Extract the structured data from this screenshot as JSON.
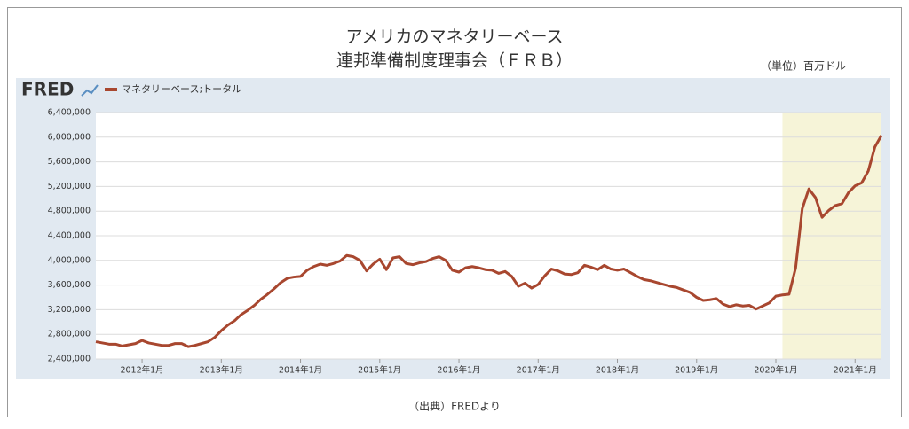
{
  "chart_data": {
    "type": "line",
    "title": "アメリカのマネタリーベース",
    "subtitle": "連邦準備制度理事会（ＦＲＢ）",
    "unit_note": "（単位）百万ドル",
    "logo": "FRED",
    "source": "（出典）FREDより",
    "x": [
      "2011-06",
      "2011-07",
      "2011-08",
      "2011-09",
      "2011-10",
      "2011-11",
      "2011-12",
      "2012-01",
      "2012-02",
      "2012-03",
      "2012-04",
      "2012-05",
      "2012-06",
      "2012-07",
      "2012-08",
      "2012-09",
      "2012-10",
      "2012-11",
      "2012-12",
      "2013-01",
      "2013-02",
      "2013-03",
      "2013-04",
      "2013-05",
      "2013-06",
      "2013-07",
      "2013-08",
      "2013-09",
      "2013-10",
      "2013-11",
      "2013-12",
      "2014-01",
      "2014-02",
      "2014-03",
      "2014-04",
      "2014-05",
      "2014-06",
      "2014-07",
      "2014-08",
      "2014-09",
      "2014-10",
      "2014-11",
      "2014-12",
      "2015-01",
      "2015-02",
      "2015-03",
      "2015-04",
      "2015-05",
      "2015-06",
      "2015-07",
      "2015-08",
      "2015-09",
      "2015-10",
      "2015-11",
      "2015-12",
      "2016-01",
      "2016-02",
      "2016-03",
      "2016-04",
      "2016-05",
      "2016-06",
      "2016-07",
      "2016-08",
      "2016-09",
      "2016-10",
      "2016-11",
      "2016-12",
      "2017-01",
      "2017-02",
      "2017-03",
      "2017-04",
      "2017-05",
      "2017-06",
      "2017-07",
      "2017-08",
      "2017-09",
      "2017-10",
      "2017-11",
      "2017-12",
      "2018-01",
      "2018-02",
      "2018-03",
      "2018-04",
      "2018-05",
      "2018-06",
      "2018-07",
      "2018-08",
      "2018-09",
      "2018-10",
      "2018-11",
      "2018-12",
      "2019-01",
      "2019-02",
      "2019-03",
      "2019-04",
      "2019-05",
      "2019-06",
      "2019-07",
      "2019-08",
      "2019-09",
      "2019-10",
      "2019-11",
      "2019-12",
      "2020-01",
      "2020-02",
      "2020-03",
      "2020-04",
      "2020-05",
      "2020-06",
      "2020-07",
      "2020-08",
      "2020-09",
      "2020-10",
      "2020-11",
      "2020-12",
      "2021-01",
      "2021-02",
      "2021-03",
      "2021-04",
      "2021-05"
    ],
    "series": [
      {
        "name": "マネタリーベース;トータル",
        "color": "#a8472f",
        "values": [
          2680000,
          2660000,
          2640000,
          2640000,
          2610000,
          2630000,
          2650000,
          2700000,
          2660000,
          2640000,
          2620000,
          2620000,
          2650000,
          2650000,
          2600000,
          2620000,
          2650000,
          2680000,
          2750000,
          2860000,
          2950000,
          3020000,
          3120000,
          3190000,
          3270000,
          3370000,
          3450000,
          3540000,
          3640000,
          3710000,
          3730000,
          3740000,
          3840000,
          3900000,
          3940000,
          3920000,
          3950000,
          3990000,
          4080000,
          4060000,
          4000000,
          3830000,
          3940000,
          4020000,
          3850000,
          4040000,
          4060000,
          3950000,
          3930000,
          3960000,
          3980000,
          4030000,
          4060000,
          4000000,
          3840000,
          3810000,
          3880000,
          3900000,
          3880000,
          3850000,
          3840000,
          3790000,
          3820000,
          3740000,
          3580000,
          3630000,
          3550000,
          3610000,
          3750000,
          3860000,
          3830000,
          3780000,
          3770000,
          3800000,
          3920000,
          3890000,
          3850000,
          3920000,
          3860000,
          3840000,
          3860000,
          3800000,
          3740000,
          3690000,
          3670000,
          3640000,
          3610000,
          3580000,
          3560000,
          3520000,
          3480000,
          3400000,
          3350000,
          3360000,
          3380000,
          3290000,
          3250000,
          3280000,
          3260000,
          3270000,
          3210000,
          3260000,
          3310000,
          3420000,
          3440000,
          3450000,
          3880000,
          4840000,
          5160000,
          5020000,
          4700000,
          4810000,
          4890000,
          4920000,
          5100000,
          5210000,
          5260000,
          5450000,
          5840000,
          6030000
        ]
      }
    ],
    "xlim": [
      "2011-06",
      "2021-05"
    ],
    "xticks": [
      {
        "value": "2012-01",
        "label": "2012年1月"
      },
      {
        "value": "2013-01",
        "label": "2013年1月"
      },
      {
        "value": "2014-01",
        "label": "2014年1月"
      },
      {
        "value": "2015-01",
        "label": "2015年1月"
      },
      {
        "value": "2016-01",
        "label": "2016年1月"
      },
      {
        "value": "2017-01",
        "label": "2017年1月"
      },
      {
        "value": "2018-01",
        "label": "2018年1月"
      },
      {
        "value": "2019-01",
        "label": "2019年1月"
      },
      {
        "value": "2020-01",
        "label": "2020年1月"
      },
      {
        "value": "2021-01",
        "label": "2021年1月"
      }
    ],
    "ylim": [
      2400000,
      6400000
    ],
    "yticks": [
      {
        "value": 2400000,
        "label": "2,400,000"
      },
      {
        "value": 2800000,
        "label": "2,800,000"
      },
      {
        "value": 3200000,
        "label": "3,200,000"
      },
      {
        "value": 3600000,
        "label": "3,600,000"
      },
      {
        "value": 4000000,
        "label": "4,000,000"
      },
      {
        "value": 4400000,
        "label": "4,400,000"
      },
      {
        "value": 4800000,
        "label": "4,800,000"
      },
      {
        "value": 5200000,
        "label": "5,200,000"
      },
      {
        "value": 5600000,
        "label": "5,600,000"
      },
      {
        "value": 6000000,
        "label": "6,000,000"
      },
      {
        "value": 6400000,
        "label": "6,400,000"
      }
    ],
    "grid": true,
    "shade": [
      "2020-02",
      "2021-05"
    ],
    "shade_color": "#f6f4d8"
  }
}
